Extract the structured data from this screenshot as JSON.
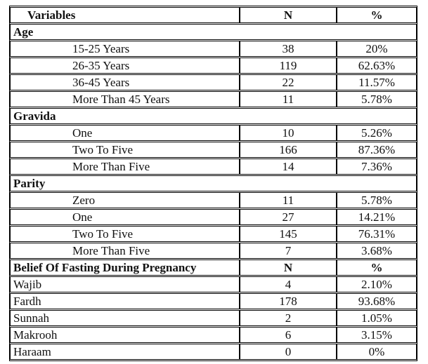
{
  "header": {
    "variables": "Variables",
    "n": "N",
    "pct": "%"
  },
  "sections": [
    {
      "title": "Age",
      "rows": [
        {
          "label": "15-25 Years",
          "n": "38",
          "pct": "20%"
        },
        {
          "label": "26-35 Years",
          "n": "119",
          "pct": "62.63%"
        },
        {
          "label": "36-45 Years",
          "n": "22",
          "pct": "11.57%"
        },
        {
          "label": "More Than 45 Years",
          "n": "11",
          "pct": "5.78%"
        }
      ]
    },
    {
      "title": "Gravida",
      "rows": [
        {
          "label": "One",
          "n": "10",
          "pct": "5.26%"
        },
        {
          "label": "Two To Five",
          "n": "166",
          "pct": "87.36%"
        },
        {
          "label": "More Than Five",
          "n": "14",
          "pct": "7.36%"
        }
      ]
    },
    {
      "title": "Parity",
      "rows": [
        {
          "label": "Zero",
          "n": "11",
          "pct": "5.78%"
        },
        {
          "label": "One",
          "n": "27",
          "pct": "14.21%"
        },
        {
          "label": "Two To Five",
          "n": "145",
          "pct": "76.31%"
        },
        {
          "label": "More Than Five",
          "n": "7",
          "pct": "3.68%"
        }
      ]
    }
  ],
  "belief": {
    "title": "Belief Of Fasting During Pregnancy",
    "n": "N",
    "pct": "%",
    "rows": [
      {
        "label": "Wajib",
        "n": "4",
        "pct": "2.10%"
      },
      {
        "label": "Fardh",
        "n": "178",
        "pct": "93.68%"
      },
      {
        "label": "Sunnah",
        "n": "2",
        "pct": "1.05%"
      },
      {
        "label": "Makrooh",
        "n": "6",
        "pct": "3.15%"
      },
      {
        "label": "Haraam",
        "n": "0",
        "pct": "0%"
      }
    ]
  },
  "colors": {
    "border": "#000000",
    "text": "#111111",
    "background": "#ffffff"
  }
}
